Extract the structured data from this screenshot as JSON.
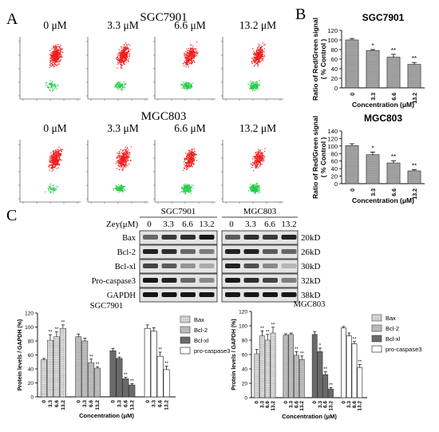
{
  "panel_labels": {
    "a": "A",
    "b": "B",
    "c": "C"
  },
  "flow": {
    "doses": [
      "0 μM",
      "3.3 μM",
      "6.6 μM",
      "13.2 μM"
    ],
    "cell_lines": [
      "SGC7901",
      "MGC803"
    ]
  },
  "colors": {
    "red": "#ee1c1c",
    "green": "#22cc44",
    "bar": "#9a9a9a"
  },
  "chart_data": [
    {
      "type": "bar",
      "title": "SGC7901",
      "categories": [
        "0",
        "3.3",
        "6.6",
        "13.2"
      ],
      "values": [
        100,
        78,
        64,
        49
      ],
      "errors": [
        3,
        2,
        6,
        4
      ],
      "sig": [
        "",
        "*",
        "**",
        "**"
      ],
      "ylabel": "Ratio of Red/Green signal ( % Control )",
      "xlabel": "Concentration (μM)",
      "ylim": [
        0,
        120
      ],
      "yticks": [
        0,
        20,
        40,
        60,
        80,
        100,
        120
      ]
    },
    {
      "type": "bar",
      "title": "MGC803",
      "categories": [
        "0",
        "3.3",
        "6.6",
        "13.2"
      ],
      "values": [
        101,
        77,
        55,
        34
      ],
      "errors": [
        5,
        7,
        6,
        3
      ],
      "sig": [
        "",
        "*",
        "**",
        "**"
      ],
      "ylabel": "Ratio of Red/Green signal ( % Control )",
      "xlabel": "Concentration (μM)",
      "ylim": [
        0,
        140
      ],
      "yticks": [
        0,
        20,
        40,
        60,
        80,
        100,
        120,
        140
      ]
    },
    {
      "type": "bar",
      "title": "SGC7901",
      "categories": [
        "0",
        "3.3",
        "6.6",
        "13.2"
      ],
      "series": [
        {
          "name": "Bax",
          "values": [
            53,
            81,
            86,
            98
          ],
          "errors": [
            2,
            8,
            7,
            5
          ],
          "sig": [
            "",
            "**",
            "**",
            "**"
          ]
        },
        {
          "name": "Bcl-2",
          "values": [
            86,
            80,
            49,
            41
          ],
          "errors": [
            4,
            4,
            5,
            2
          ],
          "sig": [
            "",
            "",
            "**",
            "**"
          ]
        },
        {
          "name": "Bcl-xl",
          "values": [
            66,
            55,
            26,
            17
          ],
          "errors": [
            3,
            2,
            2,
            2
          ],
          "sig": [
            "",
            "*",
            "**",
            "**"
          ]
        },
        {
          "name": "pro-caspase3",
          "values": [
            98,
            94,
            58,
            39
          ],
          "errors": [
            5,
            5,
            6,
            5
          ],
          "sig": [
            "",
            "",
            "**",
            "**"
          ]
        }
      ],
      "ylabel": "Protein levels / GAPDH (%)",
      "xlabel": "Concentration (μM)",
      "ylim": [
        0,
        120
      ],
      "yticks": [
        0,
        20,
        40,
        60,
        80,
        100,
        120
      ]
    },
    {
      "type": "bar",
      "title": "MGC803",
      "categories": [
        "0",
        "3.3",
        "6.6",
        "13.2"
      ],
      "series": [
        {
          "name": "Bax",
          "values": [
            61,
            86,
            80,
            90
          ],
          "errors": [
            6,
            7,
            8,
            8
          ],
          "sig": [
            "",
            "**",
            "**",
            "**"
          ]
        },
        {
          "name": "Bcl-2",
          "values": [
            87,
            88,
            59,
            53
          ],
          "errors": [
            2,
            2,
            5,
            5
          ],
          "sig": [
            "",
            "",
            "**",
            "**"
          ]
        },
        {
          "name": "Bcl-xl",
          "values": [
            88,
            64,
            32,
            12
          ],
          "errors": [
            4,
            5,
            4,
            2
          ],
          "sig": [
            "",
            "*",
            "**",
            "**"
          ]
        },
        {
          "name": "pro-caspase3",
          "values": [
            97,
            86,
            75,
            42
          ],
          "errors": [
            2,
            4,
            3,
            4
          ],
          "sig": [
            "",
            "",
            "**",
            "**"
          ]
        }
      ],
      "ylabel": "Protein levels / GAPDH (%)",
      "xlabel": "Concentration (μM)",
      "ylim": [
        0,
        120
      ],
      "yticks": [
        0,
        20,
        40,
        60,
        80,
        100,
        120
      ]
    }
  ],
  "western": {
    "zey_label": "Zey(μM)",
    "lines": [
      "SGC7901",
      "MGC803"
    ],
    "doses": [
      "0",
      "3.3",
      "6.6",
      "13.2"
    ],
    "proteins": [
      "Bax",
      "Bcl-2",
      "Bcl-xl",
      "Pro-caspase3",
      "GAPDH"
    ],
    "sizes": [
      "20kD",
      "26kD",
      "30kD",
      "32kD",
      "38kD"
    ]
  }
}
